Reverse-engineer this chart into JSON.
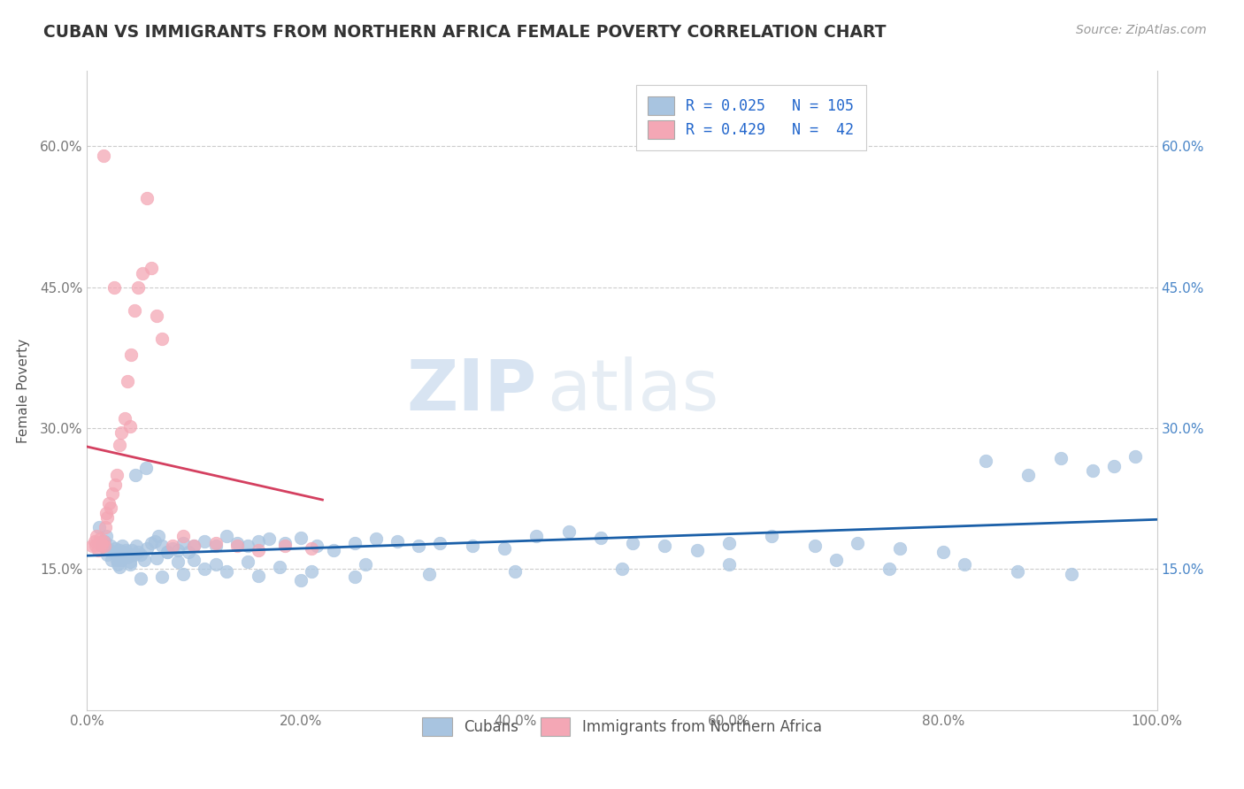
{
  "title": "CUBAN VS IMMIGRANTS FROM NORTHERN AFRICA FEMALE POVERTY CORRELATION CHART",
  "source_text": "Source: ZipAtlas.com",
  "ylabel": "Female Poverty",
  "xlim": [
    0,
    1
  ],
  "ylim": [
    0,
    0.68
  ],
  "xticks": [
    0.0,
    0.2,
    0.4,
    0.6,
    0.8,
    1.0
  ],
  "xticklabels": [
    "0.0%",
    "20.0%",
    "40.0%",
    "60.0%",
    "80.0%",
    "100.0%"
  ],
  "yticks": [
    0.15,
    0.3,
    0.45,
    0.6
  ],
  "yticklabels": [
    "15.0%",
    "30.0%",
    "45.0%",
    "60.0%"
  ],
  "grid_color": "#cccccc",
  "background_color": "#ffffff",
  "cubans_color": "#a8c4e0",
  "northafrica_color": "#f4a7b5",
  "cubans_line_color": "#1a5fa8",
  "northafrica_line_color": "#d44060",
  "legend_R1": "R = 0.025",
  "legend_N1": "N = 105",
  "legend_R2": "R = 0.429",
  "legend_N2": "N =  42",
  "legend_label1": "Cubans",
  "legend_label2": "Immigrants from Northern Africa",
  "watermark_zip": "ZIP",
  "watermark_atlas": "atlas",
  "cubans_x": [
    0.011,
    0.014,
    0.016,
    0.018,
    0.019,
    0.021,
    0.022,
    0.023,
    0.025,
    0.026,
    0.027,
    0.028,
    0.029,
    0.03,
    0.031,
    0.032,
    0.033,
    0.035,
    0.036,
    0.037,
    0.038,
    0.04,
    0.042,
    0.044,
    0.046,
    0.048,
    0.05,
    0.053,
    0.056,
    0.06,
    0.063,
    0.067,
    0.07,
    0.075,
    0.08,
    0.085,
    0.09,
    0.095,
    0.1,
    0.11,
    0.12,
    0.13,
    0.14,
    0.15,
    0.16,
    0.17,
    0.185,
    0.2,
    0.215,
    0.23,
    0.25,
    0.27,
    0.29,
    0.31,
    0.33,
    0.36,
    0.39,
    0.42,
    0.45,
    0.48,
    0.51,
    0.54,
    0.57,
    0.6,
    0.64,
    0.68,
    0.72,
    0.76,
    0.8,
    0.84,
    0.88,
    0.91,
    0.94,
    0.96,
    0.98,
    0.045,
    0.055,
    0.065,
    0.075,
    0.085,
    0.1,
    0.12,
    0.15,
    0.18,
    0.21,
    0.26,
    0.32,
    0.4,
    0.5,
    0.6,
    0.7,
    0.75,
    0.82,
    0.87,
    0.92,
    0.03,
    0.04,
    0.05,
    0.07,
    0.09,
    0.11,
    0.13,
    0.16,
    0.2,
    0.25
  ],
  "cubans_y": [
    0.195,
    0.175,
    0.18,
    0.185,
    0.165,
    0.17,
    0.175,
    0.16,
    0.168,
    0.172,
    0.165,
    0.16,
    0.155,
    0.17,
    0.165,
    0.16,
    0.175,
    0.168,
    0.17,
    0.165,
    0.163,
    0.158,
    0.17,
    0.165,
    0.175,
    0.168,
    0.165,
    0.16,
    0.172,
    0.178,
    0.18,
    0.185,
    0.175,
    0.168,
    0.172,
    0.17,
    0.178,
    0.168,
    0.175,
    0.18,
    0.175,
    0.185,
    0.178,
    0.175,
    0.18,
    0.182,
    0.178,
    0.183,
    0.175,
    0.17,
    0.178,
    0.182,
    0.18,
    0.175,
    0.178,
    0.175,
    0.172,
    0.185,
    0.19,
    0.183,
    0.178,
    0.175,
    0.17,
    0.178,
    0.185,
    0.175,
    0.178,
    0.172,
    0.168,
    0.265,
    0.25,
    0.268,
    0.255,
    0.26,
    0.27,
    0.25,
    0.258,
    0.162,
    0.168,
    0.158,
    0.16,
    0.155,
    0.158,
    0.152,
    0.148,
    0.155,
    0.145,
    0.148,
    0.15,
    0.155,
    0.16,
    0.15,
    0.155,
    0.148,
    0.145,
    0.152,
    0.155,
    0.14,
    0.142,
    0.145,
    0.15,
    0.148,
    0.143,
    0.138,
    0.142
  ],
  "northafrica_x": [
    0.005,
    0.007,
    0.008,
    0.009,
    0.01,
    0.011,
    0.012,
    0.013,
    0.014,
    0.015,
    0.016,
    0.017,
    0.018,
    0.019,
    0.02,
    0.022,
    0.024,
    0.026,
    0.028,
    0.03,
    0.032,
    0.035,
    0.038,
    0.041,
    0.044,
    0.048,
    0.052,
    0.056,
    0.06,
    0.065,
    0.07,
    0.08,
    0.09,
    0.1,
    0.12,
    0.14,
    0.16,
    0.185,
    0.21,
    0.015,
    0.025,
    0.04
  ],
  "northafrica_y": [
    0.175,
    0.18,
    0.175,
    0.185,
    0.17,
    0.178,
    0.182,
    0.178,
    0.175,
    0.18,
    0.175,
    0.195,
    0.21,
    0.205,
    0.22,
    0.215,
    0.23,
    0.24,
    0.25,
    0.282,
    0.295,
    0.31,
    0.35,
    0.378,
    0.425,
    0.45,
    0.465,
    0.545,
    0.47,
    0.42,
    0.395,
    0.175,
    0.185,
    0.175,
    0.178,
    0.175,
    0.17,
    0.175,
    0.172,
    0.59,
    0.45,
    0.302
  ]
}
